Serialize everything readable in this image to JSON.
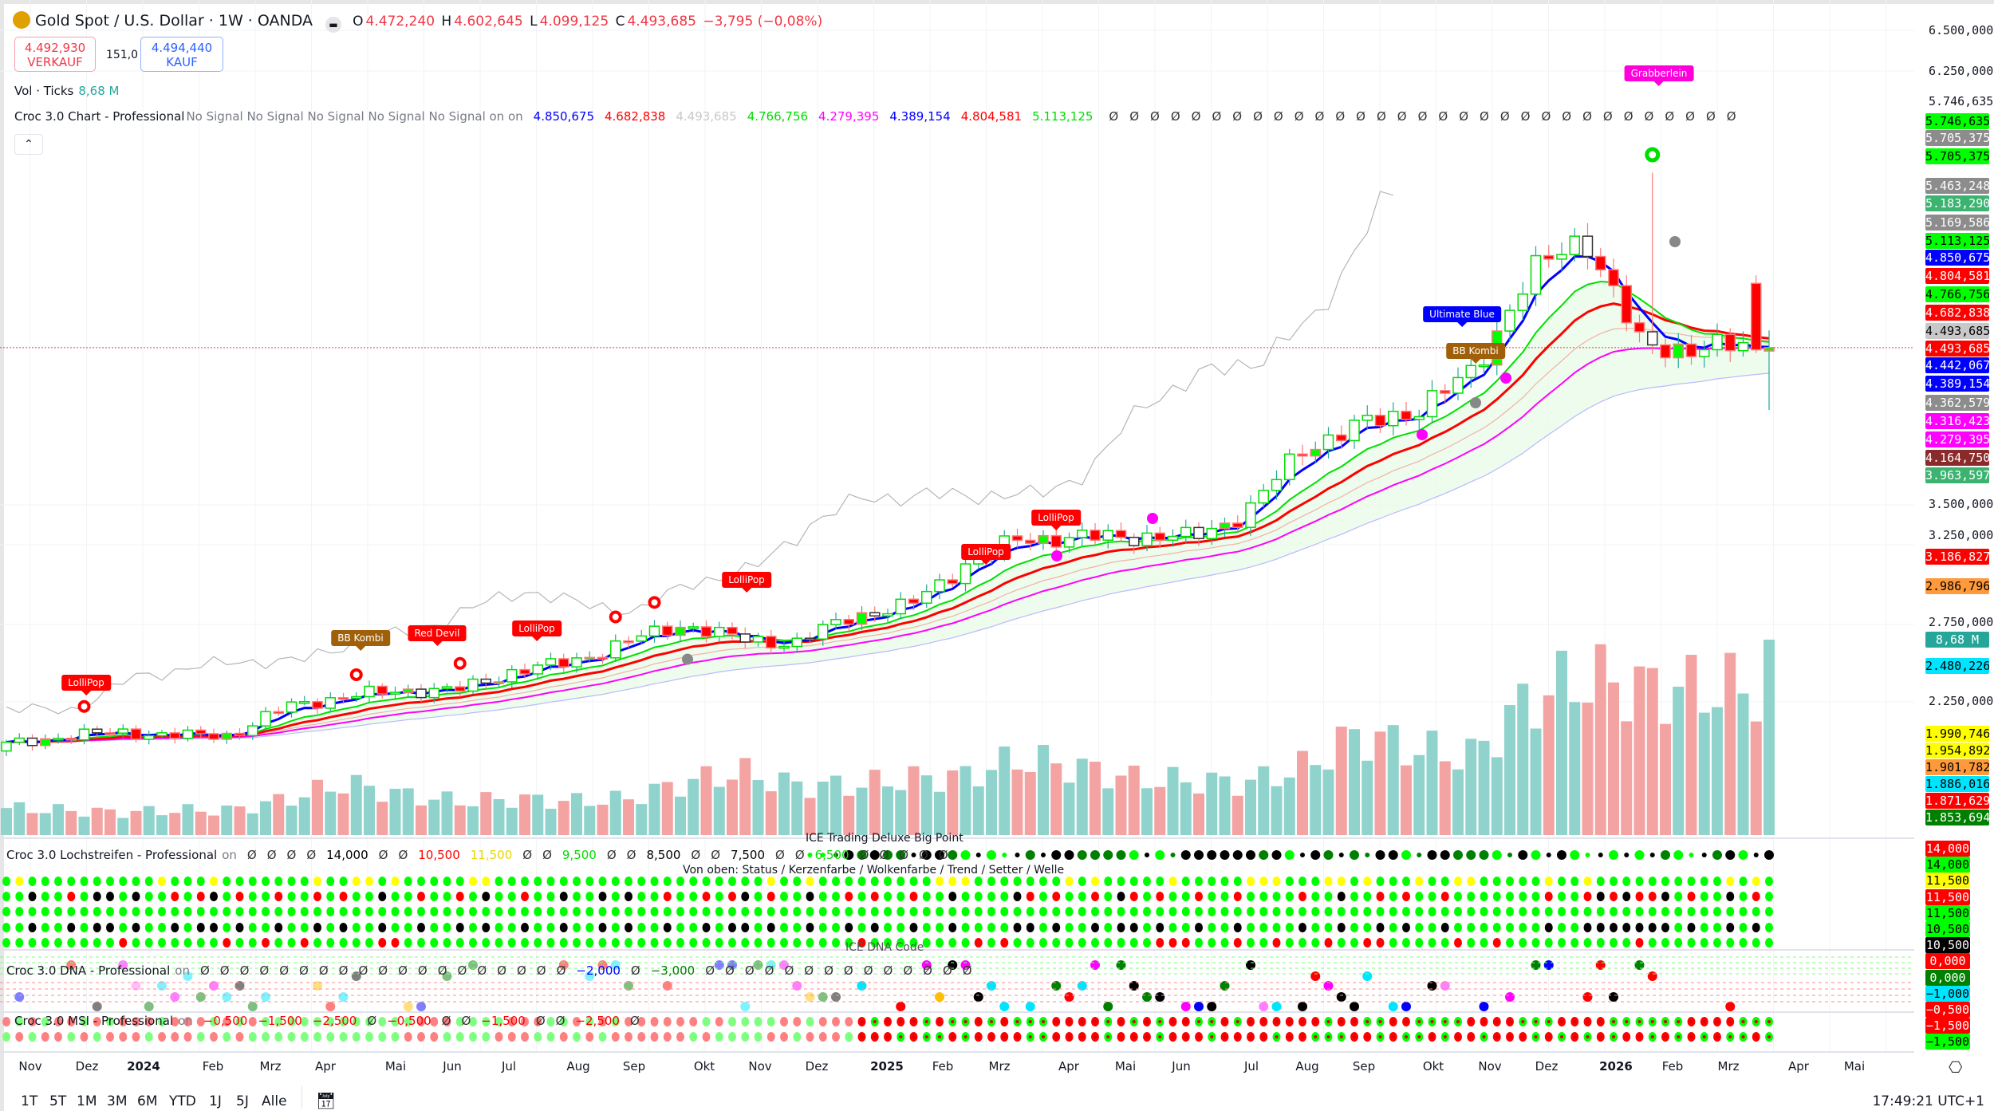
{
  "header": {
    "title": "Gold Spot / U.S. Dollar · 1W · OANDA",
    "ohlc": {
      "o_label": "O",
      "o": "4.472,240",
      "h_label": "H",
      "h": "4.602,645",
      "l_label": "L",
      "l": "4.099,125",
      "c_label": "C",
      "c": "4.493,685",
      "change": "−3,795 (−0,08%)"
    },
    "sell": {
      "price": "4.492,930",
      "label": "VERKAUF"
    },
    "spread": "151,0",
    "buy": {
      "price": "4.494,440",
      "label": "KAUF"
    },
    "volume": {
      "label": "Vol · Ticks",
      "value": "8,68 M"
    }
  },
  "indicators": {
    "chart": {
      "name": "Croc 3.0 Chart - Professional",
      "signals": "No Signal No Signal No Signal No Signal No Signal on on",
      "values": [
        {
          "t": "4.850,675",
          "c": "#0000ff"
        },
        {
          "t": "4.682,838",
          "c": "#ff0000"
        },
        {
          "t": "4.493,685",
          "c": "#c8c8c8"
        },
        {
          "t": "4.766,756",
          "c": "#00dd00"
        },
        {
          "t": "4.279,395",
          "c": "#ff00ff"
        },
        {
          "t": "4.389,154",
          "c": "#0000ff"
        },
        {
          "t": "4.804,581",
          "c": "#ff0000"
        },
        {
          "t": "5.113,125",
          "c": "#00dd00"
        }
      ],
      "empty_count": 31,
      "empty_symbol": "Ø"
    },
    "lochstreifen": {
      "name": "Croc 3.0 Lochstreifen - Professional",
      "on": "on",
      "values": [
        {
          "t": "Ø",
          "c": "#333"
        },
        {
          "t": "Ø",
          "c": "#333"
        },
        {
          "t": "Ø",
          "c": "#333"
        },
        {
          "t": "Ø",
          "c": "#333"
        },
        {
          "t": "14,000",
          "c": "#000"
        },
        {
          "t": "Ø",
          "c": "#333"
        },
        {
          "t": "Ø",
          "c": "#333"
        },
        {
          "t": "10,500",
          "c": "#ff0000"
        },
        {
          "t": "11,500",
          "c": "#e6d800"
        },
        {
          "t": "Ø",
          "c": "#333"
        },
        {
          "t": "Ø",
          "c": "#333"
        },
        {
          "t": "9,500",
          "c": "#00dd00"
        },
        {
          "t": "Ø",
          "c": "#333"
        },
        {
          "t": "Ø",
          "c": "#333"
        },
        {
          "t": "8,500",
          "c": "#000"
        },
        {
          "t": "Ø",
          "c": "#333"
        },
        {
          "t": "Ø",
          "c": "#333"
        },
        {
          "t": "7,500",
          "c": "#000"
        },
        {
          "t": "Ø",
          "c": "#333"
        },
        {
          "t": "Ø",
          "c": "#333"
        },
        {
          "t": "6,500",
          "c": "#00dd00"
        },
        {
          "t": "Ø",
          "c": "#333"
        },
        {
          "t": "Ø",
          "c": "#333"
        },
        {
          "t": "Ø",
          "c": "#333"
        },
        {
          "t": "Ø",
          "c": "#333"
        },
        {
          "t": "Ø",
          "c": "#333"
        }
      ],
      "title": "ICE Trading Deluxe Big Point",
      "legend": "Von oben: Status / Kerzenfarbe / Wolkenfarbe / Trend / Setter / Welle"
    },
    "dna": {
      "name": "Croc 3.0 DNA - Professional",
      "on": "on",
      "values": [
        {
          "t": "Ø",
          "c": "#333"
        },
        {
          "t": "Ø",
          "c": "#333"
        },
        {
          "t": "Ø",
          "c": "#333"
        },
        {
          "t": "Ø",
          "c": "#333"
        },
        {
          "t": "Ø",
          "c": "#333"
        },
        {
          "t": "Ø",
          "c": "#333"
        },
        {
          "t": "Ø",
          "c": "#333"
        },
        {
          "t": "Ø",
          "c": "#333"
        },
        {
          "t": "Ø",
          "c": "#333"
        },
        {
          "t": "Ø",
          "c": "#333"
        },
        {
          "t": "Ø",
          "c": "#333"
        },
        {
          "t": "Ø",
          "c": "#333"
        },
        {
          "t": "Ø",
          "c": "#333"
        },
        {
          "t": "Ø",
          "c": "#333"
        },
        {
          "t": "Ø",
          "c": "#333"
        },
        {
          "t": "Ø",
          "c": "#333"
        },
        {
          "t": "Ø",
          "c": "#333"
        },
        {
          "t": "Ø",
          "c": "#333"
        },
        {
          "t": "Ø",
          "c": "#333"
        },
        {
          "t": "−2,000",
          "c": "#0000ff"
        },
        {
          "t": "Ø",
          "c": "#333"
        },
        {
          "t": "−3,000",
          "c": "#008000"
        },
        {
          "t": "Ø",
          "c": "#333"
        },
        {
          "t": "Ø",
          "c": "#333"
        },
        {
          "t": "Ø",
          "c": "#333"
        },
        {
          "t": "Ø",
          "c": "#333"
        },
        {
          "t": "Ø",
          "c": "#333"
        },
        {
          "t": "Ø",
          "c": "#333"
        },
        {
          "t": "Ø",
          "c": "#333"
        },
        {
          "t": "Ø",
          "c": "#333"
        },
        {
          "t": "Ø",
          "c": "#333"
        },
        {
          "t": "Ø",
          "c": "#333"
        },
        {
          "t": "Ø",
          "c": "#333"
        },
        {
          "t": "Ø",
          "c": "#333"
        },
        {
          "t": "Ø",
          "c": "#333"
        },
        {
          "t": "Ø",
          "c": "#333"
        }
      ],
      "title": "ICE DNA Code"
    },
    "msi": {
      "name": "Croc 3.0 MSI - Professional",
      "on": "on",
      "values": [
        {
          "t": "−0,500",
          "c": "#ff0000"
        },
        {
          "t": "−1,500",
          "c": "#ff0000"
        },
        {
          "t": "−2,500",
          "c": "#ff0000"
        },
        {
          "t": "Ø",
          "c": "#333"
        },
        {
          "t": "−0,500",
          "c": "#ff0000"
        },
        {
          "t": "Ø",
          "c": "#333"
        },
        {
          "t": "Ø",
          "c": "#333"
        },
        {
          "t": "−1,500",
          "c": "#ff0000"
        },
        {
          "t": "Ø",
          "c": "#333"
        },
        {
          "t": "Ø",
          "c": "#333"
        },
        {
          "t": "−2,500",
          "c": "#ff0000"
        },
        {
          "t": "Ø",
          "c": "#333"
        }
      ]
    }
  },
  "markers": [
    {
      "label": "LolliPop",
      "color": "#ff0000"
    },
    {
      "label": "BB Kombi",
      "color": "#a0600a"
    },
    {
      "label": "Red Devil",
      "color": "#ff0000"
    },
    {
      "label": "LolliPop",
      "color": "#ff0000"
    },
    {
      "label": "LolliPop",
      "color": "#ff0000"
    },
    {
      "label": "LolliPop",
      "color": "#ff0000"
    },
    {
      "label": "LolliPop",
      "color": "#ff0000"
    },
    {
      "label": "Ultimate Blue",
      "color": "#0000ff"
    },
    {
      "label": "BB Kombi",
      "color": "#a0600a"
    },
    {
      "label": "Grabberlein",
      "color": "#ff00dd"
    }
  ],
  "price_axis": {
    "ticks": [
      "6.500,000",
      "6.250,000",
      "5.746,635",
      "3.500,000",
      "3.250,000",
      "2.750,000",
      "2.250,000"
    ],
    "badges": [
      {
        "t": "5.746,635",
        "bg": "#00ff00",
        "fg": "#000"
      },
      {
        "t": "5.705,375",
        "bg": "#8c8c8c",
        "fg": "#fff"
      },
      {
        "t": "5.705,375",
        "bg": "#00ff00",
        "fg": "#000"
      },
      {
        "t": "5.463,248",
        "bg": "#8c8c8c",
        "fg": "#fff"
      },
      {
        "t": "5.183,290",
        "bg": "#3cb371",
        "fg": "#fff"
      },
      {
        "t": "5.169,586",
        "bg": "#8c8c8c",
        "fg": "#fff"
      },
      {
        "t": "5.113,125",
        "bg": "#00ff00",
        "fg": "#000"
      },
      {
        "t": "4.850,675",
        "bg": "#0000ff",
        "fg": "#fff"
      },
      {
        "t": "4.804,581",
        "bg": "#ff0000",
        "fg": "#fff"
      },
      {
        "t": "4.766,756",
        "bg": "#00ff00",
        "fg": "#000"
      },
      {
        "t": "4.682,838",
        "bg": "#ff0000",
        "fg": "#fff"
      },
      {
        "t": "4.493,685",
        "bg": "#c8c8c8",
        "fg": "#000"
      },
      {
        "t": "4.493,685",
        "bg": "#ff0000",
        "fg": "#fff"
      },
      {
        "t": "4.442,067",
        "bg": "#0000ff",
        "fg": "#fff"
      },
      {
        "t": "4.389,154",
        "bg": "#0000ff",
        "fg": "#fff"
      },
      {
        "t": "4.362,579",
        "bg": "#8c8c8c",
        "fg": "#fff"
      },
      {
        "t": "4.316,423",
        "bg": "#ff00ff",
        "fg": "#fff"
      },
      {
        "t": "4.279,395",
        "bg": "#ff00ff",
        "fg": "#fff"
      },
      {
        "t": "4.164,750",
        "bg": "#8b2a2a",
        "fg": "#fff"
      },
      {
        "t": "3.963,597",
        "bg": "#3cb371",
        "fg": "#fff"
      },
      {
        "t": "3.186,827",
        "bg": "#ff0000",
        "fg": "#fff"
      },
      {
        "t": "2.986,796",
        "bg": "#ff9a3c",
        "fg": "#000"
      },
      {
        "t": "8,68 M",
        "bg": "#26a69a",
        "fg": "#fff"
      },
      {
        "t": "2.480,226",
        "bg": "#00e5ff",
        "fg": "#000"
      },
      {
        "t": "1.990,746",
        "bg": "#ffff00",
        "fg": "#000"
      },
      {
        "t": "1.954,892",
        "bg": "#ffff00",
        "fg": "#000"
      },
      {
        "t": "1.901,782",
        "bg": "#ff9a3c",
        "fg": "#000"
      },
      {
        "t": "1.886,016",
        "bg": "#00e5ff",
        "fg": "#000"
      },
      {
        "t": "1.871,629",
        "bg": "#ff0000",
        "fg": "#fff"
      },
      {
        "t": "1.853,694",
        "bg": "#008000",
        "fg": "#fff"
      }
    ],
    "pane_badges": [
      {
        "t": "14,000",
        "bg": "#ff0000",
        "fg": "#fff"
      },
      {
        "t": "14,000",
        "bg": "#00ff00",
        "fg": "#000"
      },
      {
        "t": "11,500",
        "bg": "#ffff00",
        "fg": "#000"
      },
      {
        "t": "11,500",
        "bg": "#ff0000",
        "fg": "#fff"
      },
      {
        "t": "11,500",
        "bg": "#00ff00",
        "fg": "#000"
      },
      {
        "t": "10,500",
        "bg": "#00ff00",
        "fg": "#000"
      },
      {
        "t": "10,500",
        "bg": "#000000",
        "fg": "#fff"
      },
      {
        "t": "0,000",
        "bg": "#ff0000",
        "fg": "#fff"
      },
      {
        "t": "0,000",
        "bg": "#008000",
        "fg": "#fff"
      },
      {
        "t": "−1,000",
        "bg": "#00e5ff",
        "fg": "#000"
      },
      {
        "t": "−0,500",
        "bg": "#ff0000",
        "fg": "#fff"
      },
      {
        "t": "−1,500",
        "bg": "#ff0000",
        "fg": "#fff"
      },
      {
        "t": "−1,500",
        "bg": "#00ff00",
        "fg": "#000"
      }
    ]
  },
  "time_axis": [
    "Nov",
    "Dez",
    "2024",
    "Feb",
    "Mrz",
    "Apr",
    "Mai",
    "Jun",
    "Jul",
    "Aug",
    "Sep",
    "Okt",
    "Nov",
    "Dez",
    "2025",
    "Feb",
    "Mrz",
    "Apr",
    "Mai",
    "Jun",
    "Jul",
    "Aug",
    "Sep",
    "Okt",
    "Nov",
    "Dez",
    "2026",
    "Feb",
    "Mrz",
    "Apr",
    "Mai"
  ],
  "toolbar": {
    "ranges": [
      "1T",
      "5T",
      "1M",
      "3M",
      "6M",
      "YTD",
      "1J",
      "5J",
      "Alle"
    ],
    "clock": "17:49:21 UTC+1"
  },
  "colors": {
    "up": "#00ff00",
    "down": "#ff0000",
    "vol_up": "#8fd3cc",
    "vol_down": "#f4a3a3",
    "blue": "#0000ff",
    "green": "#00e000",
    "red": "#ff0000",
    "magenta": "#ff00ff"
  },
  "chart_data": {
    "type": "candlestick",
    "symbol": "XAUUSD",
    "timeframe": "1W",
    "monthly_closes_from_oct_2023": [
      1983,
      2036,
      2062,
      2039,
      2044,
      2230,
      2286,
      2327,
      2326,
      2447,
      2503,
      2634,
      2743,
      2650,
      2624,
      2798,
      2857,
      3123,
      3288,
      3289,
      3303,
      3290,
      3448,
      3858,
      4000,
      4100,
      4330,
      4950,
      5200,
      4494
    ],
    "monthly_volume_m": [
      1.2,
      1.1,
      1.0,
      1.1,
      1.1,
      1.6,
      2.3,
      1.8,
      1.5,
      1.6,
      1.5,
      1.6,
      2.3,
      2.8,
      2.2,
      2.2,
      2.5,
      2.6,
      3.4,
      3.0,
      2.5,
      2.4,
      2.3,
      3.0,
      4.5,
      3.8,
      3.5,
      6.0,
      7.0,
      6.5
    ],
    "last_bar": {
      "open": 4472.24,
      "high": 4602.645,
      "low": 4099.125,
      "close": 4493.685,
      "volume_m": 8.68
    },
    "spike_high": 5600,
    "ylim": [
      1800,
      6600
    ]
  }
}
